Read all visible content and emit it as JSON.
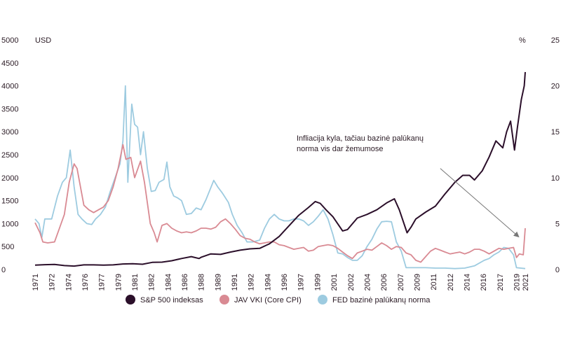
{
  "chart_data": {
    "type": "line",
    "left_axis": {
      "unit": "USD",
      "range": [
        0,
        5000
      ],
      "ticks": [
        "0",
        "500",
        "1000",
        "1500",
        "2000",
        "2500",
        "3000",
        "3500",
        "4000",
        "4500",
        "5000"
      ]
    },
    "right_axis": {
      "unit": "%",
      "range": [
        0,
        25
      ],
      "ticks": [
        "0",
        "5",
        "10",
        "15",
        "20",
        "25"
      ]
    },
    "x_range": [
      1971,
      2021.2
    ],
    "x_ticks": [
      {
        "label": "1971",
        "x": 1971
      },
      {
        "label": "1972",
        "x": 1972.7
      },
      {
        "label": "1974",
        "x": 1974.4
      },
      {
        "label": "1976",
        "x": 1976.1
      },
      {
        "label": "1977",
        "x": 1977.8
      },
      {
        "label": "1979",
        "x": 1979.5
      },
      {
        "label": "1981",
        "x": 1981.2
      },
      {
        "label": "1982",
        "x": 1982.9
      },
      {
        "label": "1984",
        "x": 1984.6
      },
      {
        "label": "1986",
        "x": 1986.3
      },
      {
        "label": "1988",
        "x": 1988.0
      },
      {
        "label": "1989",
        "x": 1989.7
      },
      {
        "label": "1991",
        "x": 1991.4
      },
      {
        "label": "1992",
        "x": 1993.1
      },
      {
        "label": "1994",
        "x": 1994.8
      },
      {
        "label": "1996",
        "x": 1996.5
      },
      {
        "label": "1997",
        "x": 1998.2
      },
      {
        "label": "1999",
        "x": 1999.9
      },
      {
        "label": "2001",
        "x": 2001.6
      },
      {
        "label": "2002",
        "x": 2003.3
      },
      {
        "label": "2004",
        "x": 2005.0
      },
      {
        "label": "2006",
        "x": 2006.7
      },
      {
        "label": "2007",
        "x": 2008.4
      },
      {
        "label": "2009",
        "x": 2010.1
      },
      {
        "label": "2011",
        "x": 2011.8
      },
      {
        "label": "2012",
        "x": 2013.5
      },
      {
        "label": "2014",
        "x": 2015.2
      },
      {
        "label": "2016",
        "x": 2016.9
      },
      {
        "label": "2017",
        "x": 2018.6
      },
      {
        "label": "2019",
        "x": 2020.3
      },
      {
        "label": "2021",
        "x": 2021.2
      }
    ],
    "annotation": {
      "lines": [
        "Infliacija kyla, tačiau bazinė palūkanų",
        "norma vis dar žemumose"
      ],
      "arrow_from": [
        2012.5,
        2200
      ],
      "arrow_to": [
        2020.6,
        700
      ]
    },
    "colors": {
      "sp500": "#2b0f2a",
      "cpi": "#d98a93",
      "fed": "#9dcbe0"
    },
    "series": [
      {
        "name": "S&P 500 indeksas",
        "axis": "left",
        "color": "#2b0f2a",
        "points": [
          [
            1971,
            95
          ],
          [
            1972,
            105
          ],
          [
            1973,
            110
          ],
          [
            1974,
            85
          ],
          [
            1975,
            75
          ],
          [
            1976,
            100
          ],
          [
            1977,
            100
          ],
          [
            1978,
            95
          ],
          [
            1979,
            100
          ],
          [
            1980,
            120
          ],
          [
            1981,
            125
          ],
          [
            1982,
            115
          ],
          [
            1983,
            155
          ],
          [
            1984,
            160
          ],
          [
            1985,
            190
          ],
          [
            1986,
            240
          ],
          [
            1987,
            280
          ],
          [
            1987.8,
            240
          ],
          [
            1988,
            265
          ],
          [
            1989,
            340
          ],
          [
            1990,
            330
          ],
          [
            1991,
            380
          ],
          [
            1992,
            420
          ],
          [
            1993,
            450
          ],
          [
            1994,
            460
          ],
          [
            1995,
            560
          ],
          [
            1996,
            720
          ],
          [
            1997,
            950
          ],
          [
            1998,
            1180
          ],
          [
            1999,
            1350
          ],
          [
            1999.7,
            1480
          ],
          [
            2000.2,
            1440
          ],
          [
            2000.8,
            1300
          ],
          [
            2001.5,
            1150
          ],
          [
            2002.5,
            840
          ],
          [
            2003,
            870
          ],
          [
            2004,
            1120
          ],
          [
            2005,
            1200
          ],
          [
            2006,
            1300
          ],
          [
            2007,
            1450
          ],
          [
            2007.8,
            1540
          ],
          [
            2008.3,
            1300
          ],
          [
            2009.1,
            800
          ],
          [
            2009.5,
            920
          ],
          [
            2010,
            1100
          ],
          [
            2011,
            1250
          ],
          [
            2012,
            1380
          ],
          [
            2013,
            1650
          ],
          [
            2014,
            1900
          ],
          [
            2014.8,
            2050
          ],
          [
            2015.5,
            2050
          ],
          [
            2016,
            1950
          ],
          [
            2016.8,
            2150
          ],
          [
            2017.5,
            2450
          ],
          [
            2018.2,
            2800
          ],
          [
            2018.9,
            2650
          ],
          [
            2019.3,
            3000
          ],
          [
            2019.7,
            3230
          ],
          [
            2020.1,
            2600
          ],
          [
            2020.4,
            3100
          ],
          [
            2020.8,
            3700
          ],
          [
            2021.1,
            4000
          ],
          [
            2021.2,
            4300
          ]
        ]
      },
      {
        "name": "JAV VKI (Core CPI)",
        "axis": "right",
        "color": "#d98a93",
        "points": [
          [
            1971,
            5.1
          ],
          [
            1971.5,
            4.0
          ],
          [
            1971.8,
            3.0
          ],
          [
            1972.3,
            2.9
          ],
          [
            1973,
            3.0
          ],
          [
            1973.5,
            4.5
          ],
          [
            1974,
            6.0
          ],
          [
            1974.5,
            9.5
          ],
          [
            1975,
            11.5
          ],
          [
            1975.3,
            11.0
          ],
          [
            1976,
            7.0
          ],
          [
            1976.5,
            6.5
          ],
          [
            1977,
            6.2
          ],
          [
            1977.5,
            6.5
          ],
          [
            1978,
            6.8
          ],
          [
            1978.5,
            7.5
          ],
          [
            1979,
            9.0
          ],
          [
            1979.5,
            11.0
          ],
          [
            1980,
            13.6
          ],
          [
            1980.3,
            12.0
          ],
          [
            1980.8,
            12.2
          ],
          [
            1981.2,
            10.0
          ],
          [
            1981.8,
            11.8
          ],
          [
            1982.2,
            9.5
          ],
          [
            1982.8,
            5.0
          ],
          [
            1983.2,
            4.0
          ],
          [
            1983.5,
            3.0
          ],
          [
            1984,
            4.8
          ],
          [
            1984.5,
            5.0
          ],
          [
            1985,
            4.5
          ],
          [
            1985.5,
            4.2
          ],
          [
            1986,
            4.0
          ],
          [
            1986.5,
            4.1
          ],
          [
            1987,
            4.0
          ],
          [
            1987.5,
            4.2
          ],
          [
            1988,
            4.5
          ],
          [
            1988.5,
            4.5
          ],
          [
            1989,
            4.4
          ],
          [
            1989.5,
            4.6
          ],
          [
            1990,
            5.2
          ],
          [
            1990.5,
            5.5
          ],
          [
            1991,
            5.0
          ],
          [
            1991.5,
            4.4
          ],
          [
            1992,
            3.7
          ],
          [
            1992.5,
            3.4
          ],
          [
            1993,
            3.3
          ],
          [
            1993.5,
            3.0
          ],
          [
            1994,
            2.8
          ],
          [
            1994.5,
            2.9
          ],
          [
            1995,
            3.0
          ],
          [
            1995.5,
            3.0
          ],
          [
            1996,
            2.7
          ],
          [
            1996.5,
            2.6
          ],
          [
            1997,
            2.4
          ],
          [
            1997.5,
            2.2
          ],
          [
            1998,
            2.3
          ],
          [
            1998.5,
            2.4
          ],
          [
            1999,
            2.0
          ],
          [
            1999.5,
            2.1
          ],
          [
            2000,
            2.5
          ],
          [
            2000.5,
            2.6
          ],
          [
            2001,
            2.7
          ],
          [
            2001.5,
            2.6
          ],
          [
            2002,
            2.3
          ],
          [
            2002.5,
            1.9
          ],
          [
            2003,
            1.5
          ],
          [
            2003.5,
            1.2
          ],
          [
            2004,
            1.8
          ],
          [
            2004.5,
            2.0
          ],
          [
            2005,
            2.2
          ],
          [
            2005.5,
            2.1
          ],
          [
            2006,
            2.5
          ],
          [
            2006.5,
            2.9
          ],
          [
            2007,
            2.6
          ],
          [
            2007.5,
            2.2
          ],
          [
            2008,
            2.5
          ],
          [
            2008.5,
            2.4
          ],
          [
            2009,
            1.8
          ],
          [
            2009.5,
            1.6
          ],
          [
            2010,
            1.0
          ],
          [
            2010.5,
            0.8
          ],
          [
            2011,
            1.4
          ],
          [
            2011.5,
            2.0
          ],
          [
            2012,
            2.3
          ],
          [
            2012.5,
            2.1
          ],
          [
            2013,
            1.9
          ],
          [
            2013.5,
            1.7
          ],
          [
            2014,
            1.8
          ],
          [
            2014.5,
            1.9
          ],
          [
            2015,
            1.7
          ],
          [
            2015.5,
            1.9
          ],
          [
            2016,
            2.2
          ],
          [
            2016.5,
            2.2
          ],
          [
            2017,
            2.0
          ],
          [
            2017.5,
            1.7
          ],
          [
            2018,
            2.0
          ],
          [
            2018.5,
            2.3
          ],
          [
            2019,
            2.2
          ],
          [
            2019.5,
            2.3
          ],
          [
            2020,
            2.4
          ],
          [
            2020.3,
            1.3
          ],
          [
            2020.6,
            1.7
          ],
          [
            2021,
            1.6
          ],
          [
            2021.2,
            4.5
          ]
        ]
      },
      {
        "name": "FED bazinė palūkanų norma",
        "axis": "right",
        "color": "#9dcbe0",
        "points": [
          [
            1971,
            5.5
          ],
          [
            1971.4,
            5.0
          ],
          [
            1971.7,
            3.5
          ],
          [
            1972,
            5.5
          ],
          [
            1972.7,
            5.5
          ],
          [
            1973.3,
            8.0
          ],
          [
            1973.8,
            9.5
          ],
          [
            1974.2,
            10.0
          ],
          [
            1974.6,
            13.0
          ],
          [
            1975,
            9.0
          ],
          [
            1975.4,
            6.0
          ],
          [
            1975.8,
            5.5
          ],
          [
            1976.3,
            5.0
          ],
          [
            1976.8,
            4.9
          ],
          [
            1977.2,
            5.5
          ],
          [
            1977.7,
            6.0
          ],
          [
            1978.2,
            6.8
          ],
          [
            1978.7,
            8.5
          ],
          [
            1979.2,
            10.0
          ],
          [
            1979.7,
            11.5
          ],
          [
            1980,
            14.0
          ],
          [
            1980.25,
            20.0
          ],
          [
            1980.5,
            9.5
          ],
          [
            1980.9,
            18.0
          ],
          [
            1981.2,
            15.8
          ],
          [
            1981.5,
            15.5
          ],
          [
            1981.8,
            12.5
          ],
          [
            1982.1,
            15.0
          ],
          [
            1982.5,
            11.0
          ],
          [
            1982.9,
            8.5
          ],
          [
            1983.3,
            8.6
          ],
          [
            1983.7,
            9.5
          ],
          [
            1984.2,
            9.8
          ],
          [
            1984.5,
            11.7
          ],
          [
            1984.8,
            9.0
          ],
          [
            1985.2,
            8.0
          ],
          [
            1985.6,
            7.8
          ],
          [
            1986,
            7.5
          ],
          [
            1986.5,
            6.0
          ],
          [
            1987,
            6.1
          ],
          [
            1987.5,
            6.7
          ],
          [
            1988,
            6.5
          ],
          [
            1988.5,
            7.6
          ],
          [
            1989,
            8.9
          ],
          [
            1989.3,
            9.7
          ],
          [
            1989.7,
            9.0
          ],
          [
            1990.2,
            8.3
          ],
          [
            1990.8,
            7.3
          ],
          [
            1991.2,
            6.0
          ],
          [
            1991.7,
            4.8
          ],
          [
            1992.2,
            4.0
          ],
          [
            1992.7,
            3.0
          ],
          [
            1993.3,
            3.0
          ],
          [
            1994,
            3.2
          ],
          [
            1994.5,
            4.5
          ],
          [
            1995,
            5.5
          ],
          [
            1995.5,
            6.0
          ],
          [
            1996,
            5.5
          ],
          [
            1996.5,
            5.3
          ],
          [
            1997,
            5.3
          ],
          [
            1997.5,
            5.5
          ],
          [
            1998,
            5.5
          ],
          [
            1998.5,
            5.3
          ],
          [
            1999,
            4.8
          ],
          [
            1999.5,
            5.2
          ],
          [
            2000,
            5.8
          ],
          [
            2000.5,
            6.5
          ],
          [
            2001,
            5.5
          ],
          [
            2001.5,
            3.8
          ],
          [
            2002,
            1.8
          ],
          [
            2002.5,
            1.7
          ],
          [
            2003,
            1.3
          ],
          [
            2003.5,
            1.0
          ],
          [
            2004,
            1.0
          ],
          [
            2004.5,
            1.5
          ],
          [
            2005,
            2.5
          ],
          [
            2005.5,
            3.3
          ],
          [
            2006,
            4.4
          ],
          [
            2006.5,
            5.2
          ],
          [
            2007,
            5.25
          ],
          [
            2007.5,
            5.2
          ],
          [
            2008,
            3.0
          ],
          [
            2008.5,
            2.0
          ],
          [
            2009,
            0.2
          ],
          [
            2010,
            0.2
          ],
          [
            2011,
            0.2
          ],
          [
            2012,
            0.15
          ],
          [
            2013,
            0.15
          ],
          [
            2014,
            0.1
          ],
          [
            2015,
            0.15
          ],
          [
            2016,
            0.4
          ],
          [
            2017,
            1.0
          ],
          [
            2017.5,
            1.2
          ],
          [
            2018,
            1.6
          ],
          [
            2018.5,
            1.9
          ],
          [
            2019,
            2.4
          ],
          [
            2019.5,
            2.3
          ],
          [
            2020,
            1.6
          ],
          [
            2020.3,
            0.2
          ],
          [
            2021.2,
            0.1
          ]
        ]
      }
    ]
  }
}
